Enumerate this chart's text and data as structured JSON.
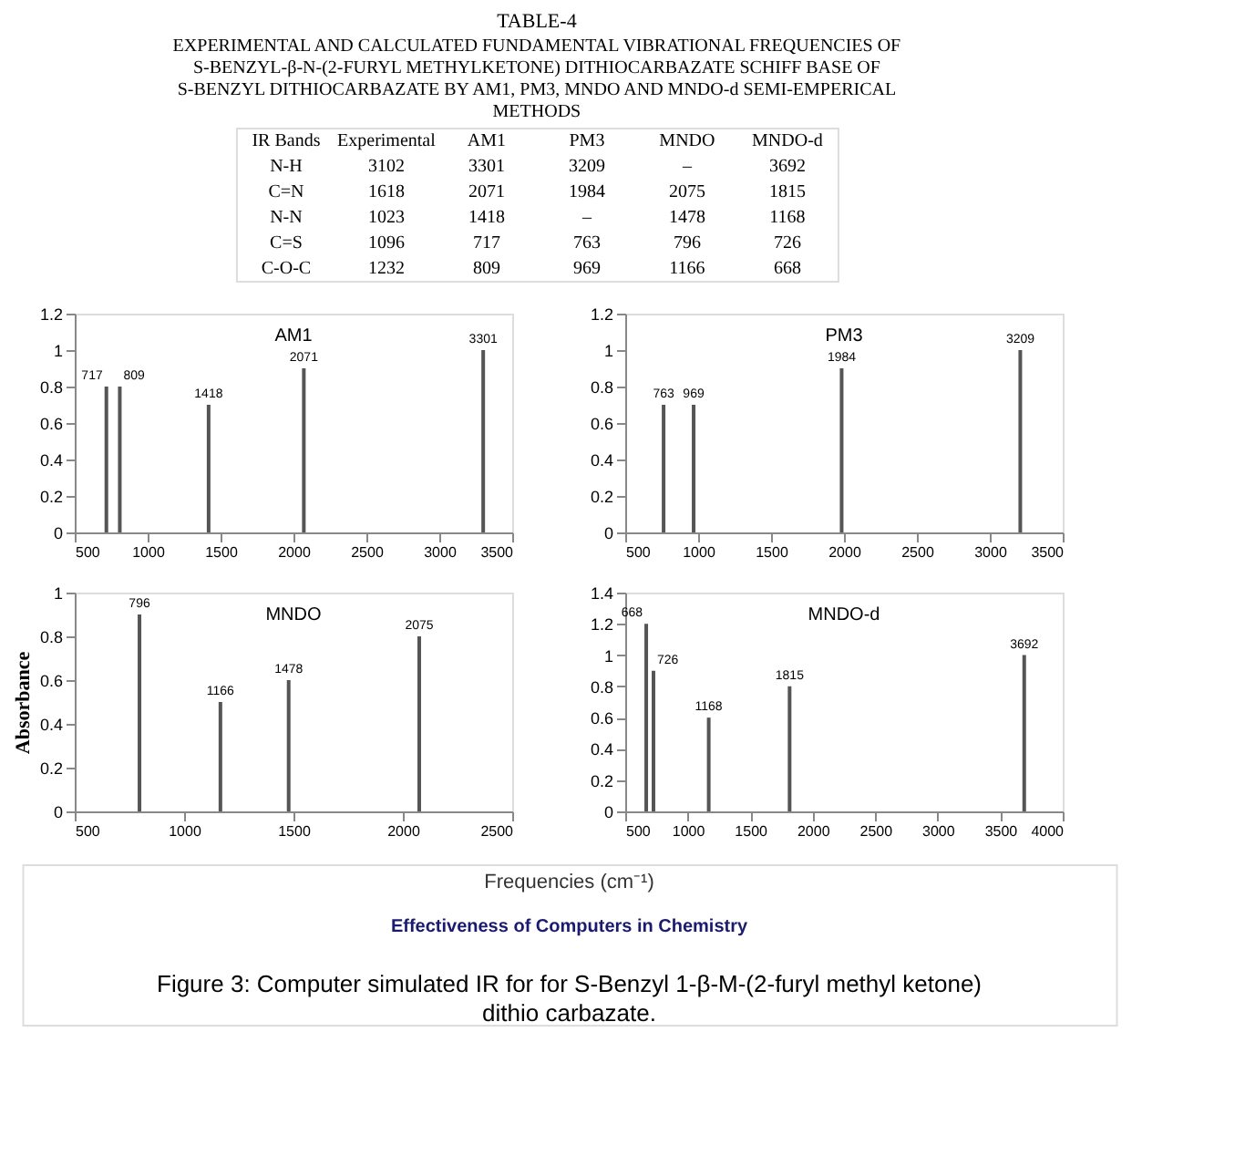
{
  "chart_data": [
    {
      "type": "other",
      "title": "TABLE-4",
      "subtitle": "EXPERIMENTAL AND CALCULATED FUNDAMENTAL VIBRATIONAL FREQUENCIES OF S-BENZYL-β-N-(2-FURYL METHYLKETONE) DITHIOCARBAZATE SCHIFF BASE OF S-BENZYL DITHIOCARBAZATE BY AM1, PM3, MNDO AND MNDO-d SEMI-EMPERICAL METHODS",
      "categories": [
        "IR Bands",
        "Experimental",
        "AM1",
        "PM3",
        "MNDO",
        "MNDO-d"
      ],
      "annotations": [
        "N-H",
        "3102",
        "3301",
        "3209",
        "–",
        "3692",
        "C=N",
        "1618",
        "2071",
        "1984",
        "2075",
        "1815",
        "N-N",
        "1023",
        "1418",
        "–",
        "1478",
        "1168",
        "C=S",
        "1096",
        "717",
        "763",
        "796",
        "726",
        "C-O-C",
        "1232",
        "809",
        "969",
        "1166",
        "668"
      ]
    },
    {
      "type": "bar",
      "title": "AM1",
      "x": [
        717,
        809,
        1418,
        2071,
        3301
      ],
      "values": [
        0.8,
        0.8,
        0.7,
        0.9,
        1.0
      ],
      "annotations": [
        {
          "text": "717",
          "x": 717,
          "y": 0.8
        },
        {
          "text": "809",
          "x": 809,
          "y": 0.8
        },
        {
          "text": "1418",
          "x": 1418,
          "y": 0.7
        },
        {
          "text": "2071",
          "x": 2071,
          "y": 0.9
        },
        {
          "text": "3301",
          "x": 3301,
          "y": 1.0
        }
      ],
      "color": "#555555",
      "xlim": [
        500,
        3500
      ],
      "xticks": [
        500,
        1000,
        1500,
        2000,
        2500,
        3000,
        3500
      ],
      "ylim": [
        0,
        1.2
      ],
      "yticks": [
        0,
        0.2,
        0.4,
        0.6,
        0.8,
        1,
        1.2
      ]
    },
    {
      "type": "bar",
      "title": "PM3",
      "x": [
        763,
        969,
        1984,
        3209
      ],
      "values": [
        0.7,
        0.7,
        0.9,
        1.0
      ],
      "annotations": [
        {
          "text": "763",
          "x": 763,
          "y": 0.7
        },
        {
          "text": "969",
          "x": 969,
          "y": 0.7
        },
        {
          "text": "1984",
          "x": 1984,
          "y": 0.9
        },
        {
          "text": "3209",
          "x": 3209,
          "y": 1.0
        }
      ],
      "color": "#555555",
      "xlim": [
        500,
        3500
      ],
      "xticks": [
        500,
        1000,
        1500,
        2000,
        2500,
        3000,
        3500
      ],
      "ylim": [
        0,
        1.2
      ],
      "yticks": [
        0,
        0.2,
        0.4,
        0.6,
        0.8,
        1,
        1.2
      ]
    },
    {
      "type": "bar",
      "title": "MNDO",
      "ylabel": "Absorbance",
      "x": [
        796,
        1166,
        1478,
        2075
      ],
      "values": [
        0.9,
        0.5,
        0.6,
        0.8
      ],
      "annotations": [
        {
          "text": "796",
          "x": 796,
          "y": 0.9
        },
        {
          "text": "1166",
          "x": 1166,
          "y": 0.5
        },
        {
          "text": "1478",
          "x": 1478,
          "y": 0.6
        },
        {
          "text": "2075",
          "x": 2075,
          "y": 0.8
        }
      ],
      "color": "#555555",
      "xlim": [
        500,
        2500
      ],
      "xticks": [
        500,
        1000,
        1500,
        2000,
        2500
      ],
      "ylim": [
        0,
        1
      ],
      "yticks": [
        0,
        0.2,
        0.4,
        0.6,
        0.8,
        1
      ]
    },
    {
      "type": "bar",
      "title": "MNDO-d",
      "x": [
        668,
        726,
        1168,
        1815,
        3692
      ],
      "values": [
        1.2,
        0.9,
        0.6,
        0.8,
        1.0
      ],
      "annotations": [
        {
          "text": "668",
          "x": 668,
          "y": 1.2
        },
        {
          "text": "726",
          "x": 726,
          "y": 0.9
        },
        {
          "text": "1168",
          "x": 1168,
          "y": 0.6
        },
        {
          "text": "1815",
          "x": 1815,
          "y": 0.8
        },
        {
          "text": "3692",
          "x": 3692,
          "y": 1.0
        }
      ],
      "color": "#555555",
      "xlim": [
        500,
        4000
      ],
      "xticks": [
        500,
        1000,
        1500,
        2000,
        2500,
        3000,
        3500,
        4000
      ],
      "ylim": [
        0,
        1.4
      ],
      "yticks": [
        0,
        0.2,
        0.4,
        0.6,
        0.8,
        1,
        1.2,
        1.4
      ]
    },
    {
      "type": "other",
      "xlabel": "Frequencies (cm⁻¹)",
      "annotations": [
        "Effectiveness of Computers in Chemistry",
        "Figure 3: Computer simulated IR for for S-Benzyl 1-β-M-(2-furyl methyl ketone) dithio carbazate."
      ]
    }
  ]
}
